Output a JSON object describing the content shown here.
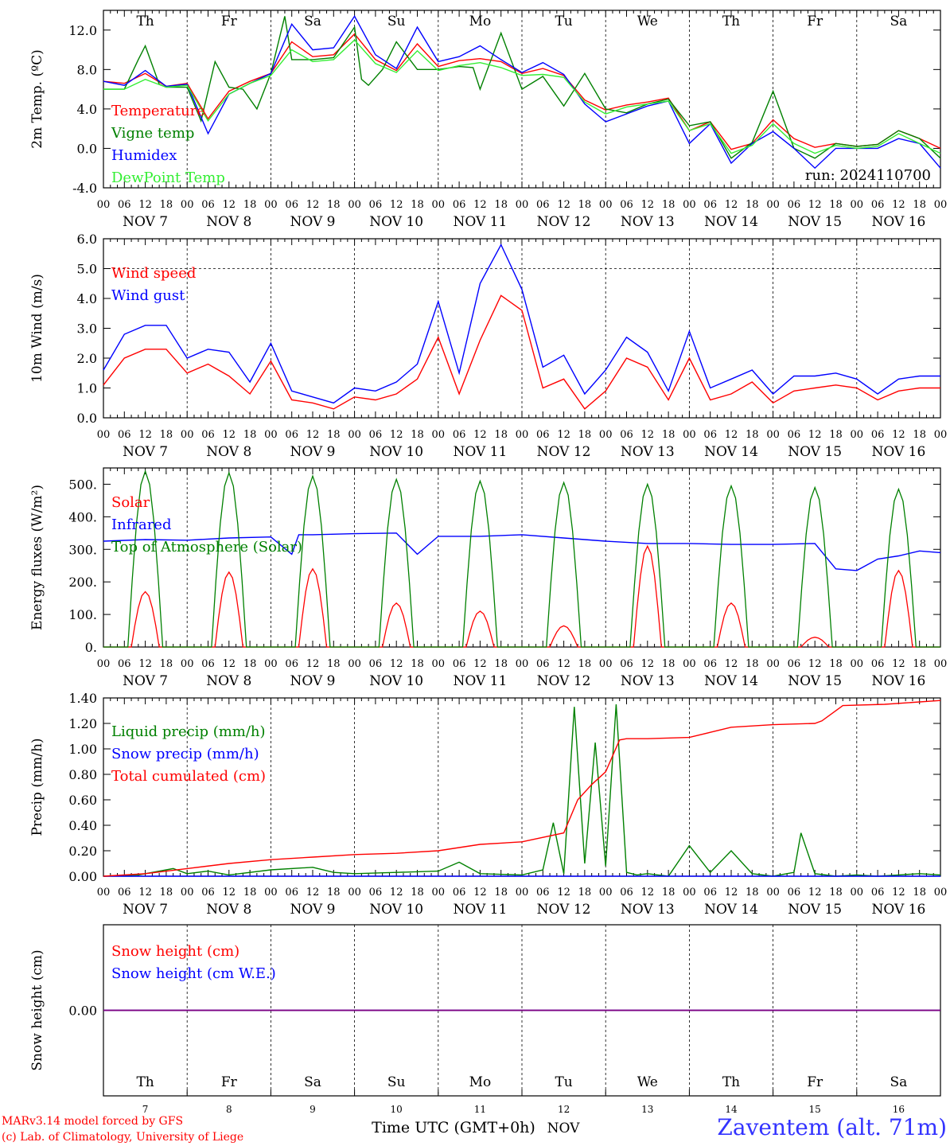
{
  "colors": {
    "red": "#ff0000",
    "green": "#008000",
    "blue": "#0000ff",
    "lightgreen": "#33ee33",
    "purple": "#7f007f",
    "weekend": "#ff0000",
    "weekday": "#000000",
    "station": "#3333ff"
  },
  "header": {
    "days": [
      {
        "name": "Th",
        "weekend": false
      },
      {
        "name": "Fr",
        "weekend": false
      },
      {
        "name": "Sa",
        "weekend": true
      },
      {
        "name": "Su",
        "weekend": true
      },
      {
        "name": "Mo",
        "weekend": false
      },
      {
        "name": "Tu",
        "weekend": false
      },
      {
        "name": "We",
        "weekend": false
      },
      {
        "name": "Th",
        "weekend": false
      },
      {
        "name": "Fr",
        "weekend": false
      },
      {
        "name": "Sa",
        "weekend": true
      }
    ]
  },
  "time_axis": {
    "hour_ticks": [
      "00",
      "06",
      "12",
      "18"
    ],
    "final_tick": "00",
    "dates": [
      "NOV  7",
      "NOV  8",
      "NOV  9",
      "NOV 10",
      "NOV 11",
      "NOV 12",
      "NOV 13",
      "NOV 14",
      "NOV 15",
      "NOV 16"
    ],
    "day_numbers": [
      "7",
      "8",
      "9",
      "10",
      "11",
      "12",
      "13",
      "14",
      "15",
      "16"
    ],
    "title": "Time UTC (GMT+0h)",
    "month": "NOV"
  },
  "footer": {
    "credit1": "MARv3.14 model forced by GFS",
    "credit2": "(c) Lab. of Climatology, University of Liege",
    "station": "Zaventem (alt. 71m)"
  },
  "chart_data": [
    {
      "type": "line",
      "ylabel": "2m Temp. (ºC)",
      "ylim": [
        -4,
        14
      ],
      "yticks": [
        "-4.0",
        "0.0",
        "4.0",
        "8.0",
        "12.0"
      ],
      "run_label": "run: 2024110700",
      "x_unit": "hours since NOV 7 00 UTC",
      "series": [
        {
          "name": "Temperature",
          "color": "red",
          "x": [
            0,
            6,
            12,
            18,
            24,
            30,
            36,
            42,
            48,
            54,
            60,
            66,
            72,
            78,
            84,
            90,
            96,
            102,
            108,
            114,
            120,
            126,
            132,
            138,
            144,
            150,
            156,
            162,
            168,
            174,
            180,
            186,
            192,
            198,
            204,
            210,
            216,
            222,
            228,
            234,
            240
          ],
          "y": [
            6.8,
            6.6,
            7.6,
            6.3,
            6.6,
            3.0,
            5.8,
            6.8,
            7.6,
            10.8,
            9.3,
            9.5,
            11.6,
            9.0,
            7.9,
            10.6,
            8.3,
            8.9,
            9.1,
            8.8,
            7.6,
            8.1,
            7.4,
            4.9,
            3.9,
            4.4,
            4.7,
            5.1,
            1.8,
            2.7,
            -0.1,
            0.5,
            2.9,
            1.0,
            0.1,
            0.5,
            0.2,
            0.4,
            1.8,
            1.0,
            0.0
          ]
        },
        {
          "name": "Vigne temp",
          "color": "green",
          "x": [
            0,
            6,
            10,
            12,
            16,
            18,
            24,
            28,
            32,
            36,
            40,
            44,
            48,
            52,
            54,
            56,
            60,
            66,
            72,
            74,
            76,
            80,
            84,
            90,
            96,
            102,
            106,
            108,
            114,
            120,
            126,
            130,
            132,
            138,
            144,
            150,
            156,
            162,
            168,
            174,
            180,
            186,
            192,
            198,
            204,
            210,
            216,
            222,
            228,
            234,
            240
          ],
          "y": [
            6.0,
            6.0,
            9.0,
            10.4,
            6.5,
            6.2,
            6.2,
            2.8,
            8.8,
            6.2,
            6.0,
            4.0,
            7.6,
            13.4,
            9.0,
            9.0,
            9.0,
            9.2,
            12.3,
            7.0,
            6.4,
            8.0,
            10.8,
            8.0,
            8.0,
            8.3,
            8.2,
            6.0,
            11.7,
            6.0,
            7.3,
            5.3,
            4.3,
            7.6,
            4.0,
            3.6,
            4.5,
            5.0,
            2.3,
            2.7,
            -1.0,
            0.6,
            5.8,
            0.0,
            -1.0,
            0.5,
            0.2,
            0.4,
            1.8,
            1.0,
            -1.0
          ]
        },
        {
          "name": "Humidex",
          "color": "blue",
          "x": [
            0,
            6,
            12,
            18,
            24,
            30,
            36,
            42,
            48,
            54,
            60,
            66,
            72,
            78,
            84,
            90,
            96,
            102,
            108,
            114,
            120,
            126,
            132,
            138,
            144,
            150,
            156,
            162,
            168,
            174,
            180,
            186,
            192,
            198,
            204,
            210,
            216,
            222,
            228,
            234,
            240
          ],
          "y": [
            6.8,
            6.4,
            7.9,
            6.3,
            6.5,
            1.5,
            5.5,
            6.6,
            7.6,
            12.6,
            10.0,
            10.2,
            13.4,
            9.5,
            8.1,
            12.3,
            8.8,
            9.3,
            10.4,
            9.0,
            7.7,
            8.7,
            7.5,
            4.5,
            2.7,
            3.5,
            4.3,
            4.8,
            0.5,
            2.5,
            -1.5,
            0.5,
            1.7,
            0.0,
            -2.0,
            0.0,
            0.0,
            0.0,
            1.0,
            0.5,
            -2.0
          ]
        },
        {
          "name": "DewPoint Temp",
          "color": "lightgreen",
          "x": [
            0,
            6,
            12,
            18,
            24,
            30,
            36,
            42,
            48,
            54,
            60,
            66,
            72,
            78,
            84,
            90,
            96,
            102,
            108,
            114,
            120,
            126,
            132,
            138,
            144,
            150,
            156,
            162,
            168,
            174,
            180,
            186,
            192,
            198,
            204,
            210,
            216,
            222,
            228,
            234,
            240
          ],
          "y": [
            6.0,
            6.0,
            7.0,
            6.2,
            6.4,
            2.8,
            5.5,
            6.6,
            7.4,
            10.0,
            8.8,
            9.0,
            11.0,
            8.6,
            7.7,
            9.9,
            7.9,
            8.4,
            8.7,
            8.2,
            7.4,
            7.5,
            7.2,
            4.7,
            3.5,
            4.2,
            4.5,
            4.8,
            1.8,
            2.5,
            -0.5,
            0.3,
            2.5,
            0.5,
            -0.5,
            0.3,
            0.0,
            0.2,
            1.5,
            0.5,
            -0.5
          ]
        }
      ]
    },
    {
      "type": "line",
      "ylabel": "10m Wind (m/s)",
      "ylim": [
        0,
        6
      ],
      "yticks": [
        "0.0",
        "1.0",
        "2.0",
        "3.0",
        "4.0",
        "5.0",
        "6.0"
      ],
      "x_unit": "hours since NOV 7 00 UTC",
      "series": [
        {
          "name": "Wind speed",
          "color": "red",
          "x": [
            0,
            6,
            12,
            18,
            24,
            30,
            36,
            42,
            48,
            54,
            60,
            66,
            72,
            78,
            84,
            90,
            96,
            102,
            108,
            114,
            120,
            126,
            132,
            138,
            144,
            150,
            156,
            162,
            168,
            174,
            180,
            186,
            192,
            198,
            204,
            210,
            216,
            222,
            228,
            234,
            240
          ],
          "y": [
            1.1,
            2.0,
            2.3,
            2.3,
            1.5,
            1.8,
            1.4,
            0.8,
            1.9,
            0.6,
            0.5,
            0.3,
            0.7,
            0.6,
            0.8,
            1.3,
            2.7,
            0.8,
            2.6,
            4.1,
            3.6,
            1.0,
            1.3,
            0.3,
            0.9,
            2.0,
            1.7,
            0.6,
            2.0,
            0.6,
            0.8,
            1.2,
            0.5,
            0.9,
            1.0,
            1.1,
            1.0,
            0.6,
            0.9,
            1.0,
            1.0
          ]
        },
        {
          "name": "Wind gust",
          "color": "blue",
          "x": [
            0,
            6,
            12,
            18,
            24,
            30,
            36,
            42,
            48,
            54,
            60,
            66,
            72,
            78,
            84,
            90,
            96,
            102,
            108,
            114,
            120,
            126,
            132,
            138,
            144,
            150,
            156,
            162,
            168,
            174,
            180,
            186,
            192,
            198,
            204,
            210,
            216,
            222,
            228,
            234,
            240
          ],
          "y": [
            1.6,
            2.8,
            3.1,
            3.1,
            2.0,
            2.3,
            2.2,
            1.2,
            2.5,
            0.9,
            0.7,
            0.5,
            1.0,
            0.9,
            1.2,
            1.8,
            3.9,
            1.5,
            4.5,
            5.8,
            4.3,
            1.7,
            2.1,
            0.8,
            1.6,
            2.7,
            2.2,
            0.9,
            2.9,
            1.0,
            1.3,
            1.6,
            0.8,
            1.4,
            1.4,
            1.5,
            1.3,
            0.8,
            1.3,
            1.4,
            1.4
          ]
        }
      ]
    },
    {
      "type": "line",
      "ylabel": "Energy fluxes (W/m²)",
      "ylim": [
        0,
        550
      ],
      "yticks": [
        "0.",
        "100.",
        "200.",
        "300.",
        "400.",
        "500."
      ],
      "x_unit": "hours since NOV 7 00 UTC",
      "series": [
        {
          "name": "Solar",
          "color": "red",
          "peaks": [
            170,
            230,
            240,
            135,
            110,
            65,
            310,
            135,
            30,
            235
          ]
        },
        {
          "name": "Infrared",
          "color": "blue",
          "x": [
            0,
            12,
            24,
            36,
            48,
            54,
            56,
            60,
            72,
            84,
            90,
            96,
            108,
            120,
            132,
            138,
            144,
            156,
            168,
            180,
            192,
            204,
            210,
            216,
            222,
            228,
            234,
            240
          ],
          "y": [
            325,
            330,
            328,
            335,
            338,
            285,
            345,
            345,
            348,
            350,
            285,
            340,
            340,
            345,
            335,
            330,
            325,
            318,
            318,
            315,
            315,
            318,
            240,
            235,
            270,
            280,
            295,
            290
          ]
        },
        {
          "name": "Top of Atmosphere (Solar)",
          "color": "green",
          "peaks": [
            540,
            535,
            525,
            515,
            510,
            505,
            500,
            495,
            490,
            485
          ]
        }
      ]
    },
    {
      "type": "line",
      "ylabel": "Precip (mm/h)",
      "ylim": [
        0,
        1.4
      ],
      "yticks": [
        "0.00",
        "0.20",
        "0.40",
        "0.60",
        "0.80",
        "1.00",
        "1.20",
        "1.40"
      ],
      "x_unit": "hours since NOV 7 00 UTC",
      "series": [
        {
          "name": "Liquid precip (mm/h)",
          "color": "green",
          "x": [
            0,
            10,
            20,
            24,
            30,
            36,
            48,
            60,
            66,
            72,
            84,
            96,
            102,
            108,
            120,
            126,
            129,
            132,
            135,
            138,
            141,
            144,
            147,
            150,
            153,
            156,
            159,
            162,
            168,
            174,
            180,
            186,
            192,
            198,
            200,
            204,
            210,
            216,
            222,
            228,
            234,
            240
          ],
          "y": [
            0,
            0.01,
            0.06,
            0.02,
            0.04,
            0.01,
            0.05,
            0.07,
            0.03,
            0.02,
            0.03,
            0.04,
            0.11,
            0.02,
            0.01,
            0.05,
            0.42,
            0.02,
            1.33,
            0.1,
            1.05,
            0.08,
            1.35,
            0.03,
            0.01,
            0.02,
            0.01,
            0,
            0.24,
            0.03,
            0.2,
            0.02,
            0,
            0.03,
            0.34,
            0.02,
            0,
            0.01,
            0,
            0.01,
            0.02,
            0.01
          ]
        },
        {
          "name": "Snow precip (mm/h)",
          "color": "blue",
          "x": [
            0,
            240
          ],
          "y": [
            0,
            0
          ]
        },
        {
          "name": "Total cumulated (cm)",
          "color": "red",
          "x": [
            0,
            12,
            24,
            36,
            48,
            60,
            72,
            84,
            96,
            108,
            120,
            132,
            136,
            140,
            144,
            148,
            150,
            156,
            168,
            174,
            180,
            192,
            204,
            206,
            212,
            224,
            240
          ],
          "y": [
            0,
            0.02,
            0.06,
            0.1,
            0.13,
            0.15,
            0.17,
            0.18,
            0.2,
            0.25,
            0.27,
            0.34,
            0.6,
            0.72,
            0.82,
            1.07,
            1.08,
            1.08,
            1.09,
            1.13,
            1.17,
            1.19,
            1.2,
            1.22,
            1.34,
            1.35,
            1.38
          ]
        }
      ]
    },
    {
      "type": "line",
      "ylabel": "Snow height (cm)",
      "ylim": [
        -1,
        1
      ],
      "yticks": [
        "0.00"
      ],
      "x_unit": "hours since NOV 7 00 UTC",
      "series": [
        {
          "name": "Snow height (cm)",
          "color": "red",
          "x": [
            0,
            240
          ],
          "y": [
            0,
            0
          ]
        },
        {
          "name": "Snow height (cm W.E.)",
          "color": "blue",
          "x": [
            0,
            240
          ],
          "y": [
            0,
            0
          ]
        }
      ]
    }
  ]
}
